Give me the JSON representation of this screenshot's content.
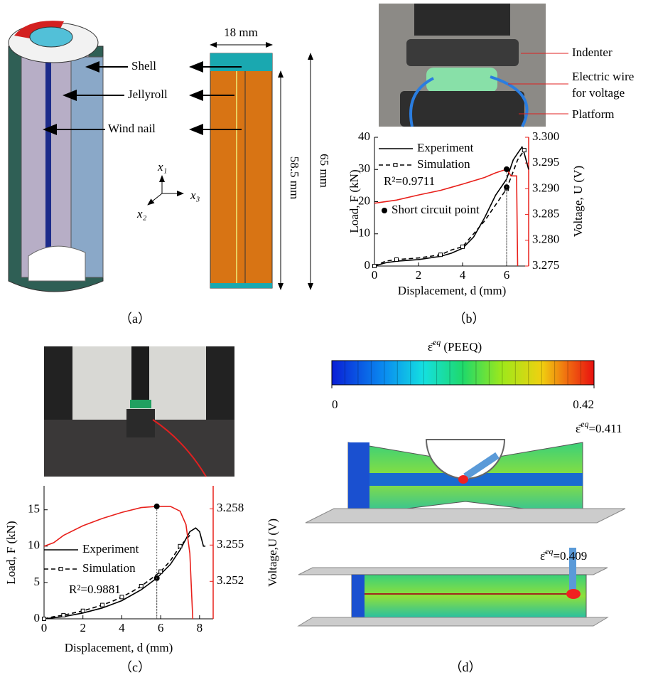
{
  "panel_a": {
    "labels": [
      "Shell",
      "Jellyroll",
      "Wind nail"
    ],
    "dimensions": [
      "18 mm",
      "58.5 mm",
      "65 mm"
    ],
    "axes": [
      "x₁",
      "x₃",
      "x₂"
    ],
    "caption": "（a）"
  },
  "panel_b": {
    "photo_labels": [
      "Indenter",
      "Electric wire",
      "for voltage",
      "Platform"
    ],
    "caption": "（b）"
  },
  "panel_c": {
    "caption": "（c）"
  },
  "panel_d": {
    "colorbar": {
      "symbol": "ε̄",
      "superscript": "eq",
      "label": "(PEEQ)",
      "ticks": [
        0,
        0.42
      ]
    },
    "annotations": [
      {
        "symbol": "ε̄",
        "superscript": "eq",
        "text": "=0.411"
      },
      {
        "symbol": "ε̄",
        "superscript": "eq",
        "text": "=0.409"
      }
    ],
    "caption": "（d）"
  },
  "chart_data": [
    {
      "type": "line",
      "x_label": "Displacement, d (mm)",
      "y_label": "Load, F (kN)",
      "y2_label": "Voltage, U (V)",
      "y2_color": "#e8201b",
      "xlim": [
        0,
        7
      ],
      "xticks": [
        0,
        2,
        4,
        6
      ],
      "ylim": [
        0,
        40
      ],
      "yticks": [
        0,
        10,
        20,
        30,
        40
      ],
      "y2lim": [
        3.275,
        3.3
      ],
      "y2ticks": [
        3.275,
        {
          "value": 3.28,
          "label": "3.280"
        },
        3.285,
        {
          "value": 3.29,
          "label": "3.290"
        },
        3.295,
        {
          "value": 3.3,
          "label": "3.300"
        }
      ],
      "annotation": "R²=0.9711",
      "series": [
        {
          "name": "Experiment",
          "style": "solid",
          "color": "#000000",
          "x": [
            0,
            0.5,
            1,
            2,
            3,
            3.5,
            4,
            4.5,
            5,
            5.5,
            6,
            6.3,
            6.5,
            6.7,
            6.8,
            7
          ],
          "values": [
            0,
            1,
            1.5,
            2,
            3,
            4,
            5.5,
            9,
            15,
            22,
            27,
            33,
            35,
            37,
            35,
            30
          ]
        },
        {
          "name": "Simulation",
          "style": "dashed",
          "color": "#000000",
          "x": [
            0,
            0.5,
            1,
            2,
            3,
            3.5,
            4,
            5,
            6,
            6.5,
            6.8
          ],
          "values": [
            0,
            1.5,
            2,
            2.5,
            3.5,
            5,
            6,
            14,
            24,
            33,
            36
          ]
        },
        {
          "name": "Short circuit point",
          "style": "points",
          "color": "#000000",
          "x": [
            6
          ],
          "values": [
            24.5
          ]
        },
        {
          "style": "solid",
          "color": "#e8201b",
          "axis": "y2",
          "x": [
            0,
            1,
            2,
            3,
            4,
            5,
            5.5,
            6,
            6.2,
            6.4,
            6.45,
            6.5
          ],
          "values": [
            3.2872,
            3.2878,
            3.2888,
            3.2897,
            3.2909,
            3.2922,
            3.2931,
            3.2938,
            3.2925,
            3.2925,
            3.2925,
            3.275
          ]
        },
        {
          "style": "points",
          "color": "#000000",
          "axis": "y2",
          "x": [
            6
          ],
          "values": [
            3.2938
          ]
        }
      ]
    },
    {
      "type": "line",
      "x_label": "Displacement, d (mm)",
      "y_label": "Load, F (kN)",
      "y2_label": "Voltage,U (V)",
      "y2_color": "#e8201b",
      "xlim": [
        0,
        8.7
      ],
      "xticks": [
        0,
        2,
        4,
        6,
        8
      ],
      "ylim": [
        0,
        18.3
      ],
      "yticks": [
        0,
        5,
        10,
        15
      ],
      "y2lim": [
        3.2489,
        3.2599
      ],
      "y2ticks": [
        3.252,
        3.255,
        3.258
      ],
      "annotation": "R²=0.9881",
      "series": [
        {
          "name": "Experiment",
          "style": "solid",
          "color": "#000000",
          "x": [
            0,
            1,
            2,
            3,
            4,
            5,
            5.8,
            6.5,
            7,
            7.5,
            7.8,
            8,
            8.2,
            8.3
          ],
          "values": [
            0,
            0.3,
            0.8,
            1.5,
            2.5,
            4,
            5.6,
            7.5,
            9.5,
            12,
            12.5,
            12,
            10,
            10
          ]
        },
        {
          "name": "Simulation",
          "style": "dashed",
          "color": "#000000",
          "x": [
            0,
            0.5,
            1,
            1.5,
            2,
            2.5,
            3,
            3.5,
            4,
            4.5,
            5,
            5.5,
            6,
            6.5,
            7,
            7.5
          ],
          "values": [
            0,
            0.3,
            0.5,
            0.8,
            1.1,
            1.5,
            1.9,
            2.4,
            3,
            3.7,
            4.5,
            5.5,
            6.5,
            8,
            10,
            11.5
          ]
        },
        {
          "style": "points",
          "color": "#000000",
          "x": [
            5.8
          ],
          "values": [
            5.6
          ]
        },
        {
          "style": "solid",
          "color": "#e8201b",
          "axis": "y2",
          "x": [
            0,
            0.5,
            1,
            2,
            3,
            4,
            5,
            5.8,
            6.5,
            7,
            7.3,
            7.5,
            7.6,
            7.65
          ],
          "values": [
            3.2549,
            3.2552,
            3.2558,
            3.2566,
            3.2572,
            3.2577,
            3.2581,
            3.2582,
            3.2582,
            3.2578,
            3.2567,
            3.2543,
            3.2507,
            3.2489
          ]
        },
        {
          "style": "points",
          "color": "#000000",
          "axis": "y2",
          "x": [
            5.8
          ],
          "values": [
            3.2582
          ]
        }
      ]
    }
  ]
}
